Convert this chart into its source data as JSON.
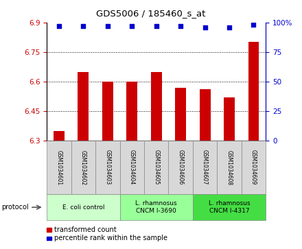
{
  "title": "GDS5006 / 185460_s_at",
  "samples": [
    "GSM1034601",
    "GSM1034602",
    "GSM1034603",
    "GSM1034604",
    "GSM1034605",
    "GSM1034606",
    "GSM1034607",
    "GSM1034608",
    "GSM1034609"
  ],
  "bar_values": [
    6.35,
    6.65,
    6.6,
    6.6,
    6.65,
    6.57,
    6.56,
    6.52,
    6.8
  ],
  "dot_values": [
    97,
    97,
    97,
    97,
    97,
    97,
    96,
    96,
    98
  ],
  "ylim_left": [
    6.3,
    6.9
  ],
  "ylim_right": [
    0,
    100
  ],
  "yticks_left": [
    6.3,
    6.45,
    6.6,
    6.75,
    6.9
  ],
  "yticks_right": [
    0,
    25,
    50,
    75,
    100
  ],
  "bar_color": "#cc0000",
  "dot_color": "#0000cc",
  "groups": [
    {
      "label": "E. coli control",
      "start": 0,
      "end": 3,
      "color": "#ccffcc"
    },
    {
      "label": "L. rhamnosus\nCNCM I-3690",
      "start": 3,
      "end": 6,
      "color": "#99ff99"
    },
    {
      "label": "L. rhamnosus\nCNCM I-4317",
      "start": 6,
      "end": 9,
      "color": "#44dd44"
    }
  ],
  "legend_bar_label": "transformed count",
  "legend_dot_label": "percentile rank within the sample",
  "protocol_label": "protocol"
}
